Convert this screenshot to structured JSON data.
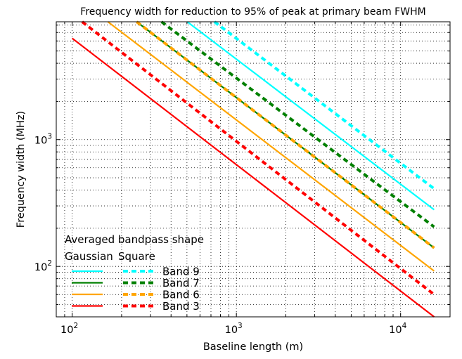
{
  "chart_data": {
    "type": "line",
    "scale": "log-log",
    "title": "Frequency width for reduction to 95% of peak at primary beam FWHM",
    "xlabel": "Baseline length (m)",
    "ylabel": "Frequency width (MHz)",
    "xlim": [
      80,
      20000
    ],
    "ylim": [
      40,
      8500
    ],
    "grid": "major and minor, dotted",
    "x_ticks": [
      {
        "base": "10",
        "exp": "2",
        "value": 100
      },
      {
        "base": "10",
        "exp": "3",
        "value": 1000
      },
      {
        "base": "10",
        "exp": "4",
        "value": 10000
      }
    ],
    "y_ticks": [
      {
        "base": "10",
        "exp": "2",
        "value": 100
      },
      {
        "base": "10",
        "exp": "3",
        "value": 1000
      }
    ],
    "legend": {
      "placement": "lower-left",
      "title_line1": "Averaged bandpass shape",
      "col_left": "Gaussian",
      "col_right": "Square"
    },
    "series": [
      {
        "name": "Band 9",
        "color": "#00ffff",
        "gaussian": {
          "x": [
            502,
            16000
          ],
          "y": [
            8500,
            280
          ]
        },
        "square": {
          "x": [
            735,
            16000
          ],
          "y": [
            8500,
            410
          ]
        }
      },
      {
        "name": "Band 7",
        "color": "#008000",
        "gaussian": {
          "x": [
            247,
            16000
          ],
          "y": [
            8500,
            140
          ]
        },
        "square": {
          "x": [
            350,
            16000
          ],
          "y": [
            8500,
            205
          ]
        }
      },
      {
        "name": "Band 6",
        "color": "#ffa500",
        "gaussian": {
          "x": [
            165,
            16000
          ],
          "y": [
            8500,
            92
          ]
        },
        "square": {
          "x": [
            247,
            16000
          ],
          "y": [
            8500,
            140
          ]
        }
      },
      {
        "name": "Band 3",
        "color": "#ff0000",
        "gaussian": {
          "x": [
            100,
            16000
          ],
          "y": [
            6300,
            40
          ]
        },
        "square": {
          "x": [
            115,
            16000
          ],
          "y": [
            8500,
            60
          ]
        }
      }
    ]
  }
}
